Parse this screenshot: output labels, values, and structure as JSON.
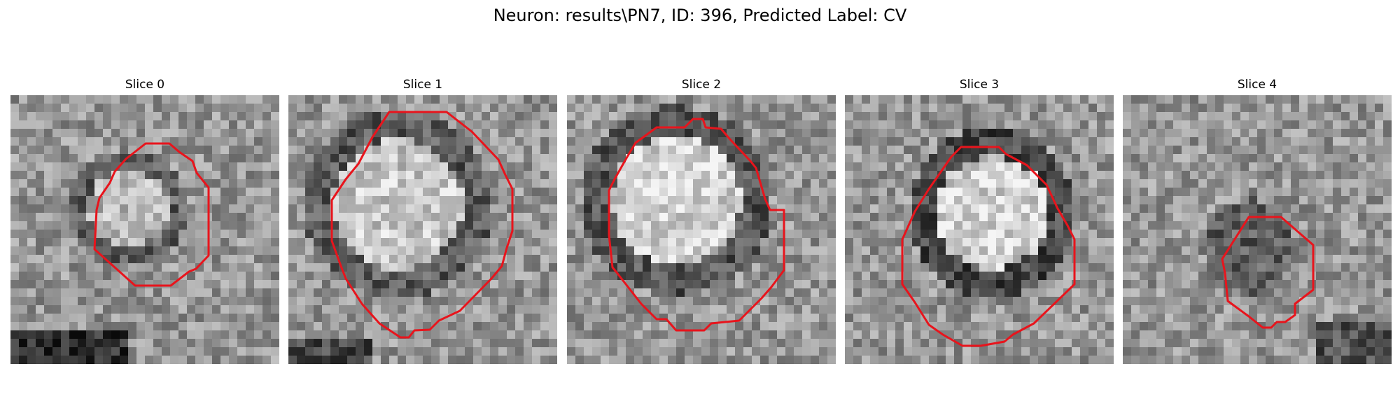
{
  "figure": {
    "title": "Neuron: results\\PN7, ID: 396, Predicted Label: CV"
  },
  "panels": [
    {
      "title": "Slice 0"
    },
    {
      "title": "Slice 1"
    },
    {
      "title": "Slice 2"
    },
    {
      "title": "Slice 3"
    },
    {
      "title": "Slice 4"
    }
  ],
  "style": {
    "contour_color": "#e8141c",
    "colormap": "grayscale"
  }
}
